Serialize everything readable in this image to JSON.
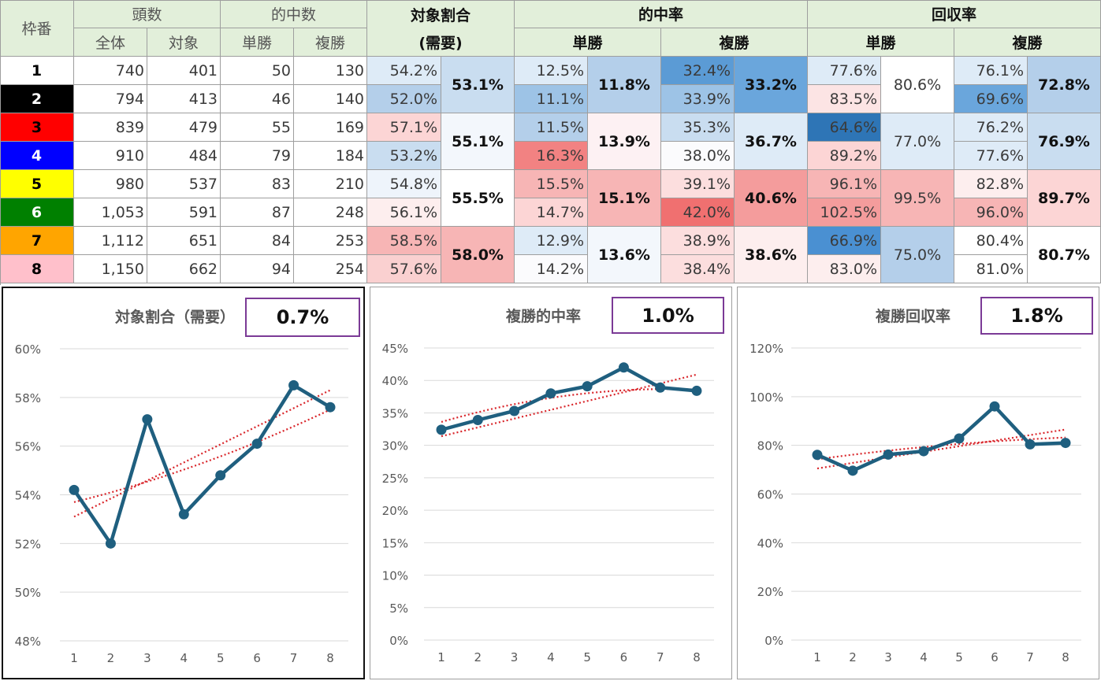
{
  "table": {
    "headers": {
      "waku": "枠番",
      "tousuu": "頭数",
      "zentai": "全体",
      "taishou": "対象",
      "tekichuusuu": "的中数",
      "tansho": "単勝",
      "fukusho": "複勝",
      "taishou_wariai": "対象割合",
      "juyou": "(需要)",
      "tekichuuritsu": "的中率",
      "kaishuuritsu": "回収率"
    },
    "rows": [
      {
        "waku": "1",
        "zentai": "740",
        "taishou": "401",
        "tan_hit": "50",
        "fuku_hit": "130",
        "ratio": "54.2%",
        "tan_rate": "12.5%",
        "fuku_rate": "32.4%",
        "tan_ret": "77.6%",
        "fuku_ret": "76.1%"
      },
      {
        "waku": "2",
        "zentai": "794",
        "taishou": "413",
        "tan_hit": "46",
        "fuku_hit": "140",
        "ratio": "52.0%",
        "tan_rate": "11.1%",
        "fuku_rate": "33.9%",
        "tan_ret": "83.5%",
        "fuku_ret": "69.6%"
      },
      {
        "waku": "3",
        "zentai": "839",
        "taishou": "479",
        "tan_hit": "55",
        "fuku_hit": "169",
        "ratio": "57.1%",
        "tan_rate": "11.5%",
        "fuku_rate": "35.3%",
        "tan_ret": "64.6%",
        "fuku_ret": "76.2%"
      },
      {
        "waku": "4",
        "zentai": "910",
        "taishou": "484",
        "tan_hit": "79",
        "fuku_hit": "184",
        "ratio": "53.2%",
        "tan_rate": "16.3%",
        "fuku_rate": "38.0%",
        "tan_ret": "89.2%",
        "fuku_ret": "77.6%"
      },
      {
        "waku": "5",
        "zentai": "980",
        "taishou": "537",
        "tan_hit": "83",
        "fuku_hit": "210",
        "ratio": "54.8%",
        "tan_rate": "15.5%",
        "fuku_rate": "39.1%",
        "tan_ret": "96.1%",
        "fuku_ret": "82.8%"
      },
      {
        "waku": "6",
        "zentai": "1,053",
        "taishou": "591",
        "tan_hit": "87",
        "fuku_hit": "248",
        "ratio": "56.1%",
        "tan_rate": "14.7%",
        "fuku_rate": "42.0%",
        "tan_ret": "102.5%",
        "fuku_ret": "96.0%"
      },
      {
        "waku": "7",
        "zentai": "1,112",
        "taishou": "651",
        "tan_hit": "84",
        "fuku_hit": "253",
        "ratio": "58.5%",
        "tan_rate": "12.9%",
        "fuku_rate": "38.9%",
        "tan_ret": "66.9%",
        "fuku_ret": "80.4%"
      },
      {
        "waku": "8",
        "zentai": "1,150",
        "taishou": "662",
        "tan_hit": "94",
        "fuku_hit": "254",
        "ratio": "57.6%",
        "tan_rate": "14.2%",
        "fuku_rate": "38.4%",
        "tan_ret": "83.0%",
        "fuku_ret": "81.0%"
      }
    ],
    "pairs": [
      {
        "ratio": "53.1%",
        "tan_rate": "11.8%",
        "fuku_rate": "33.2%",
        "tan_ret": "80.6%",
        "fuku_ret": "72.8%"
      },
      {
        "ratio": "55.1%",
        "tan_rate": "13.9%",
        "fuku_rate": "36.7%",
        "tan_ret": "77.0%",
        "fuku_ret": "76.9%"
      },
      {
        "ratio": "55.5%",
        "tan_rate": "15.1%",
        "fuku_rate": "40.6%",
        "tan_ret": "99.5%",
        "fuku_ret": "89.7%"
      },
      {
        "ratio": "58.0%",
        "tan_rate": "13.6%",
        "fuku_rate": "38.6%",
        "tan_ret": "75.0%",
        "fuku_ret": "80.7%"
      }
    ],
    "colors": {
      "waku_bg": [
        "#ffffff",
        "#000000",
        "#ff0000",
        "#0000ff",
        "#ffff00",
        "#008000",
        "#ffa500",
        "#ffc0cb"
      ],
      "waku_fg": [
        "#000000",
        "#ffffff",
        "#000000",
        "#ffffff",
        "#000000",
        "#ffffff",
        "#000000",
        "#000000"
      ],
      "header_bg": "#e2efda",
      "row_cells": [
        {
          "ratio": "#deebf7",
          "tan_rate": "#deebf7",
          "fuku_rate": "#5b9bd5",
          "tan_ret": "#deebf7",
          "fuku_ret": "#deebf7"
        },
        {
          "ratio": "#b4cfea",
          "tan_rate": "#9dc3e6",
          "fuku_rate": "#9dc3e6",
          "tan_ret": "#fce4e4",
          "fuku_ret": "#6aa6dc"
        },
        {
          "ratio": "#fcd5d5",
          "tan_rate": "#b4cfea",
          "fuku_rate": "#c9ddf0",
          "tan_ret": "#2e75b6",
          "fuku_ret": "#deebf7"
        },
        {
          "ratio": "#c9ddf0",
          "tan_rate": "#f28282",
          "fuku_rate": "#fbfbfd",
          "tan_ret": "#fcd5d5",
          "fuku_ret": "#deebf7"
        },
        {
          "ratio": "#eef4fb",
          "tan_rate": "#f7b5b5",
          "fuku_rate": "#fcdede",
          "tan_ret": "#f7b5b5",
          "fuku_ret": "#fdeeee"
        },
        {
          "ratio": "#fdeeee",
          "tan_rate": "#fcd5d5",
          "fuku_rate": "#f07070",
          "tan_ret": "#f49c9c",
          "fuku_ret": "#f7b5b5"
        },
        {
          "ratio": "#f7b5b5",
          "tan_rate": "#deebf7",
          "fuku_rate": "#fcdede",
          "tan_ret": "#4a90d2",
          "fuku_ret": "#ffffff"
        },
        {
          "ratio": "#fad0d0",
          "tan_rate": "#fbfbfd",
          "fuku_rate": "#fcdede",
          "tan_ret": "#fdeeee",
          "fuku_ret": "#ffffff"
        }
      ],
      "pair_cells": [
        {
          "ratio": "#c9ddf0",
          "tan_rate": "#b4cfea",
          "fuku_rate": "#6aa6dc",
          "tan_ret": "#ffffff",
          "fuku_ret": "#b4cfea"
        },
        {
          "ratio": "#f3f7fc",
          "tan_rate": "#fdf1f3",
          "fuku_rate": "#deebf7",
          "tan_ret": "#deebf7",
          "fuku_ret": "#c9ddf0"
        },
        {
          "ratio": "#ffffff",
          "tan_rate": "#f7b5b5",
          "fuku_rate": "#f49c9c",
          "tan_ret": "#f7b5b5",
          "fuku_ret": "#fcd5d5"
        },
        {
          "ratio": "#f7b5b5",
          "tan_rate": "#f3f7fc",
          "fuku_rate": "#fdeeee",
          "tan_ret": "#b4cfea",
          "fuku_ret": "#ffffff"
        }
      ]
    }
  },
  "chart_data": [
    {
      "type": "line",
      "title": "対象割合（需要）",
      "badge": "0.7%",
      "categories": [
        "1",
        "2",
        "3",
        "4",
        "5",
        "6",
        "7",
        "8"
      ],
      "values": [
        54.2,
        52.0,
        57.1,
        53.2,
        54.8,
        56.1,
        58.5,
        57.6
      ],
      "ylim": [
        48,
        60
      ],
      "yticks": [
        "60%",
        "58%",
        "56%",
        "54%",
        "52%",
        "50%",
        "48%"
      ],
      "ytick_values": [
        60,
        58,
        56,
        54,
        52,
        50,
        48
      ],
      "trendlines": [
        [
          53.1,
          58.3,
          "linear"
        ],
        [
          53.7,
          57.5,
          "curved"
        ]
      ],
      "line_color": "#1f5f7f",
      "trend_color": "#d9262b",
      "grid": true
    },
    {
      "type": "line",
      "title": "複勝的中率",
      "badge": "1.0%",
      "categories": [
        "1",
        "2",
        "3",
        "4",
        "5",
        "6",
        "7",
        "8"
      ],
      "values": [
        32.4,
        33.9,
        35.3,
        38.0,
        39.1,
        42.0,
        38.9,
        38.4
      ],
      "ylim": [
        0,
        45
      ],
      "yticks": [
        "45%",
        "40%",
        "35%",
        "30%",
        "25%",
        "20%",
        "15%",
        "10%",
        "5%",
        "0%"
      ],
      "ytick_values": [
        45,
        40,
        35,
        30,
        25,
        20,
        15,
        10,
        5,
        0
      ],
      "trendlines": [
        [
          31.4,
          40.9,
          "linear"
        ],
        [
          33.6,
          38.6,
          "curved"
        ]
      ],
      "line_color": "#1f5f7f",
      "trend_color": "#d9262b",
      "grid": true
    },
    {
      "type": "line",
      "title": "複勝回収率",
      "badge": "1.8%",
      "categories": [
        "1",
        "2",
        "3",
        "4",
        "5",
        "6",
        "7",
        "8"
      ],
      "values": [
        76.1,
        69.6,
        76.2,
        77.6,
        82.8,
        96.0,
        80.4,
        81.0
      ],
      "ylim": [
        0,
        120
      ],
      "yticks": [
        "120%",
        "100%",
        "80%",
        "60%",
        "40%",
        "20%",
        "0%"
      ],
      "ytick_values": [
        120,
        100,
        80,
        60,
        40,
        20,
        0
      ],
      "trendlines": [
        [
          70.5,
          86.5,
          "linear"
        ],
        [
          74.3,
          83.2,
          "curved"
        ]
      ],
      "line_color": "#1f5f7f",
      "trend_color": "#d9262b",
      "grid": true
    }
  ]
}
